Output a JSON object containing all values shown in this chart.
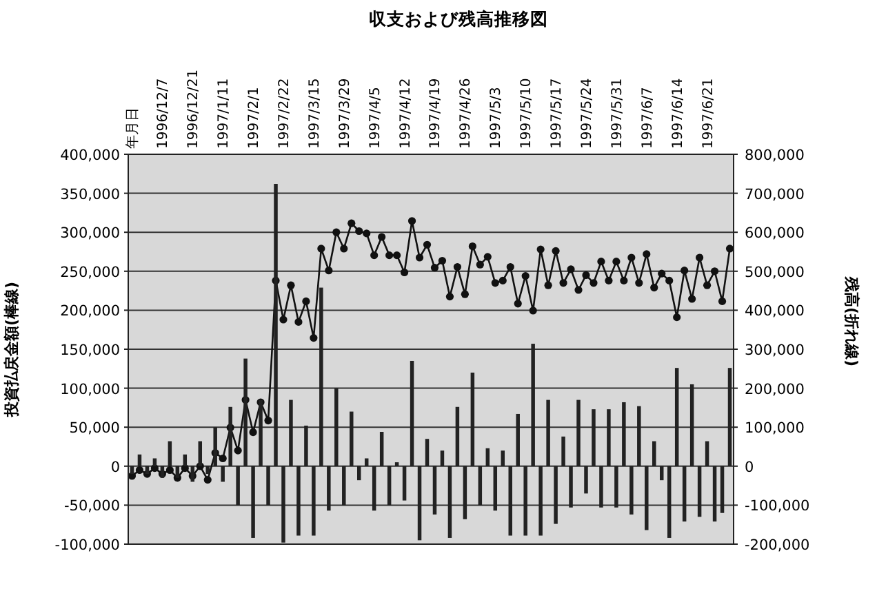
{
  "chart_data": {
    "type": "bar",
    "title": "収支および残高推移図",
    "ylabel": "投資払戻金額(棒線)",
    "y2label": "残高(折れ線)",
    "categories": [
      "年月日",
      null,
      null,
      null,
      "1996/12/7",
      null,
      null,
      null,
      "1996/12/21",
      null,
      null,
      null,
      "1997/1/11",
      null,
      null,
      null,
      "1997/2/1",
      null,
      null,
      null,
      "1997/2/22",
      null,
      null,
      null,
      "1997/3/15",
      null,
      null,
      null,
      "1997/3/29",
      null,
      null,
      null,
      "1997/4/5",
      null,
      null,
      null,
      "1997/4/12",
      null,
      null,
      null,
      "1997/4/19",
      null,
      null,
      null,
      "1997/4/26",
      null,
      null,
      null,
      "1997/5/3",
      null,
      null,
      null,
      "1997/5/10",
      null,
      null,
      null,
      "1997/5/17",
      null,
      null,
      null,
      "1997/5/24",
      null,
      null,
      null,
      "1997/5/31",
      null,
      null,
      null,
      "1997/6/7",
      null,
      null,
      null,
      "1997/6/14",
      null,
      null,
      null,
      "1997/6/21",
      null,
      null,
      null
    ],
    "series": [
      {
        "color": "#222222",
        "values": [
          -10000,
          15000,
          -10000,
          10000,
          -15000,
          32000,
          -15000,
          15000,
          -20000,
          32000,
          -10000,
          50000,
          -20000,
          76000,
          -50000,
          138000,
          -92000,
          85000,
          -50000,
          362000,
          -98000,
          85000,
          -89000,
          52000,
          -89000,
          229000,
          -57000,
          100000,
          -50000,
          70000,
          -18000,
          10000,
          -57000,
          44000,
          -50000,
          5000,
          -44000,
          135000,
          -95000,
          35000,
          -62000,
          20000,
          -92000,
          76000,
          -68000,
          120000,
          -50000,
          23000,
          -57000,
          20000,
          -89000,
          67000,
          -89000,
          157000,
          -89000,
          85000,
          -74000,
          38000,
          -53000,
          85000,
          -35000,
          73000,
          -53000,
          73000,
          -53000,
          82000,
          -62000,
          77000,
          -82000,
          32000,
          -18000,
          -92000,
          126000,
          -71000,
          105000,
          -65000,
          32000,
          -71000,
          -60000,
          126000
        ]
      },
      {
        "type": "line",
        "axis": "y2",
        "color": "#111111",
        "values": [
          -25000,
          -10000,
          -20000,
          -5000,
          -20000,
          -10000,
          -30000,
          -5000,
          -25000,
          0,
          -35000,
          34000,
          20000,
          99000,
          40000,
          170000,
          87000,
          164000,
          117000,
          476000,
          376000,
          464000,
          370000,
          423000,
          329000,
          558000,
          502000,
          600000,
          558000,
          623000,
          603000,
          597000,
          541000,
          588000,
          541000,
          541000,
          497000,
          629000,
          535000,
          568000,
          509000,
          527000,
          435000,
          511000,
          441000,
          564000,
          517000,
          537000,
          470000,
          476000,
          511000,
          417000,
          488000,
          399000,
          556000,
          464000,
          552000,
          470000,
          505000,
          452000,
          490000,
          470000,
          525000,
          476000,
          525000,
          476000,
          535000,
          470000,
          544000,
          458000,
          494000,
          476000,
          382000,
          502000,
          429000,
          535000,
          464000,
          500000,
          423000,
          558000
        ]
      }
    ],
    "ylim": [
      -100000,
      400000
    ],
    "yticks": [
      {
        "value": -100000,
        "label": "-100,000"
      },
      {
        "value": -50000,
        "label": "-50,000"
      },
      0,
      {
        "value": 50000,
        "label": "50,000"
      },
      {
        "value": 100000,
        "label": "100,000"
      },
      {
        "value": 150000,
        "label": "150,000"
      },
      {
        "value": 200000,
        "label": "200,000"
      },
      {
        "value": 250000,
        "label": "250,000"
      },
      {
        "value": 300000,
        "label": "300,000"
      },
      {
        "value": 350000,
        "label": "350,000"
      },
      {
        "value": 400000,
        "label": "400,000"
      }
    ],
    "y2lim": [
      -200000,
      800000
    ],
    "y2ticks": [
      {
        "value": -200000,
        "label": "-200,000"
      },
      {
        "value": -100000,
        "label": "-100,000"
      },
      0,
      {
        "value": 100000,
        "label": "100,000"
      },
      {
        "value": 200000,
        "label": "200,000"
      },
      {
        "value": 300000,
        "label": "300,000"
      },
      {
        "value": 400000,
        "label": "400,000"
      },
      {
        "value": 500000,
        "label": "500,000"
      },
      {
        "value": 600000,
        "label": "600,000"
      },
      {
        "value": 700000,
        "label": "700,000"
      },
      {
        "value": 800000,
        "label": "800,000"
      }
    ],
    "grid": "y",
    "marker": "circle",
    "line_style": "solid"
  }
}
